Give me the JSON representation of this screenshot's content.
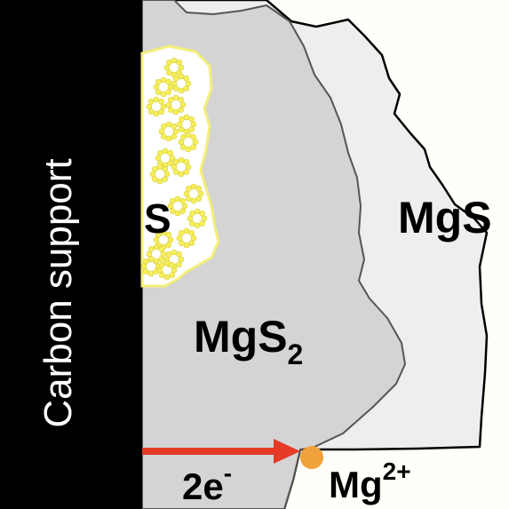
{
  "labels": {
    "support": "Carbon support",
    "sulfur": "S",
    "mgs": "MgS",
    "mgs2_base": "MgS",
    "mgs2_sub": "2",
    "electrons": "2e",
    "electron_sup": "-",
    "ion_base": "Mg",
    "ion_sup": "2+"
  },
  "colors": {
    "support": "#000000",
    "mgs2_region": "#d4d4d4",
    "mgs_region": "#eeeeee",
    "sulfur_outline": "#f3ef7a",
    "sulfur_ring": "#f6ef5c",
    "electron_arrow": "#e53a26",
    "mg_ion": "#f0a13c",
    "background": "#fffef8"
  }
}
